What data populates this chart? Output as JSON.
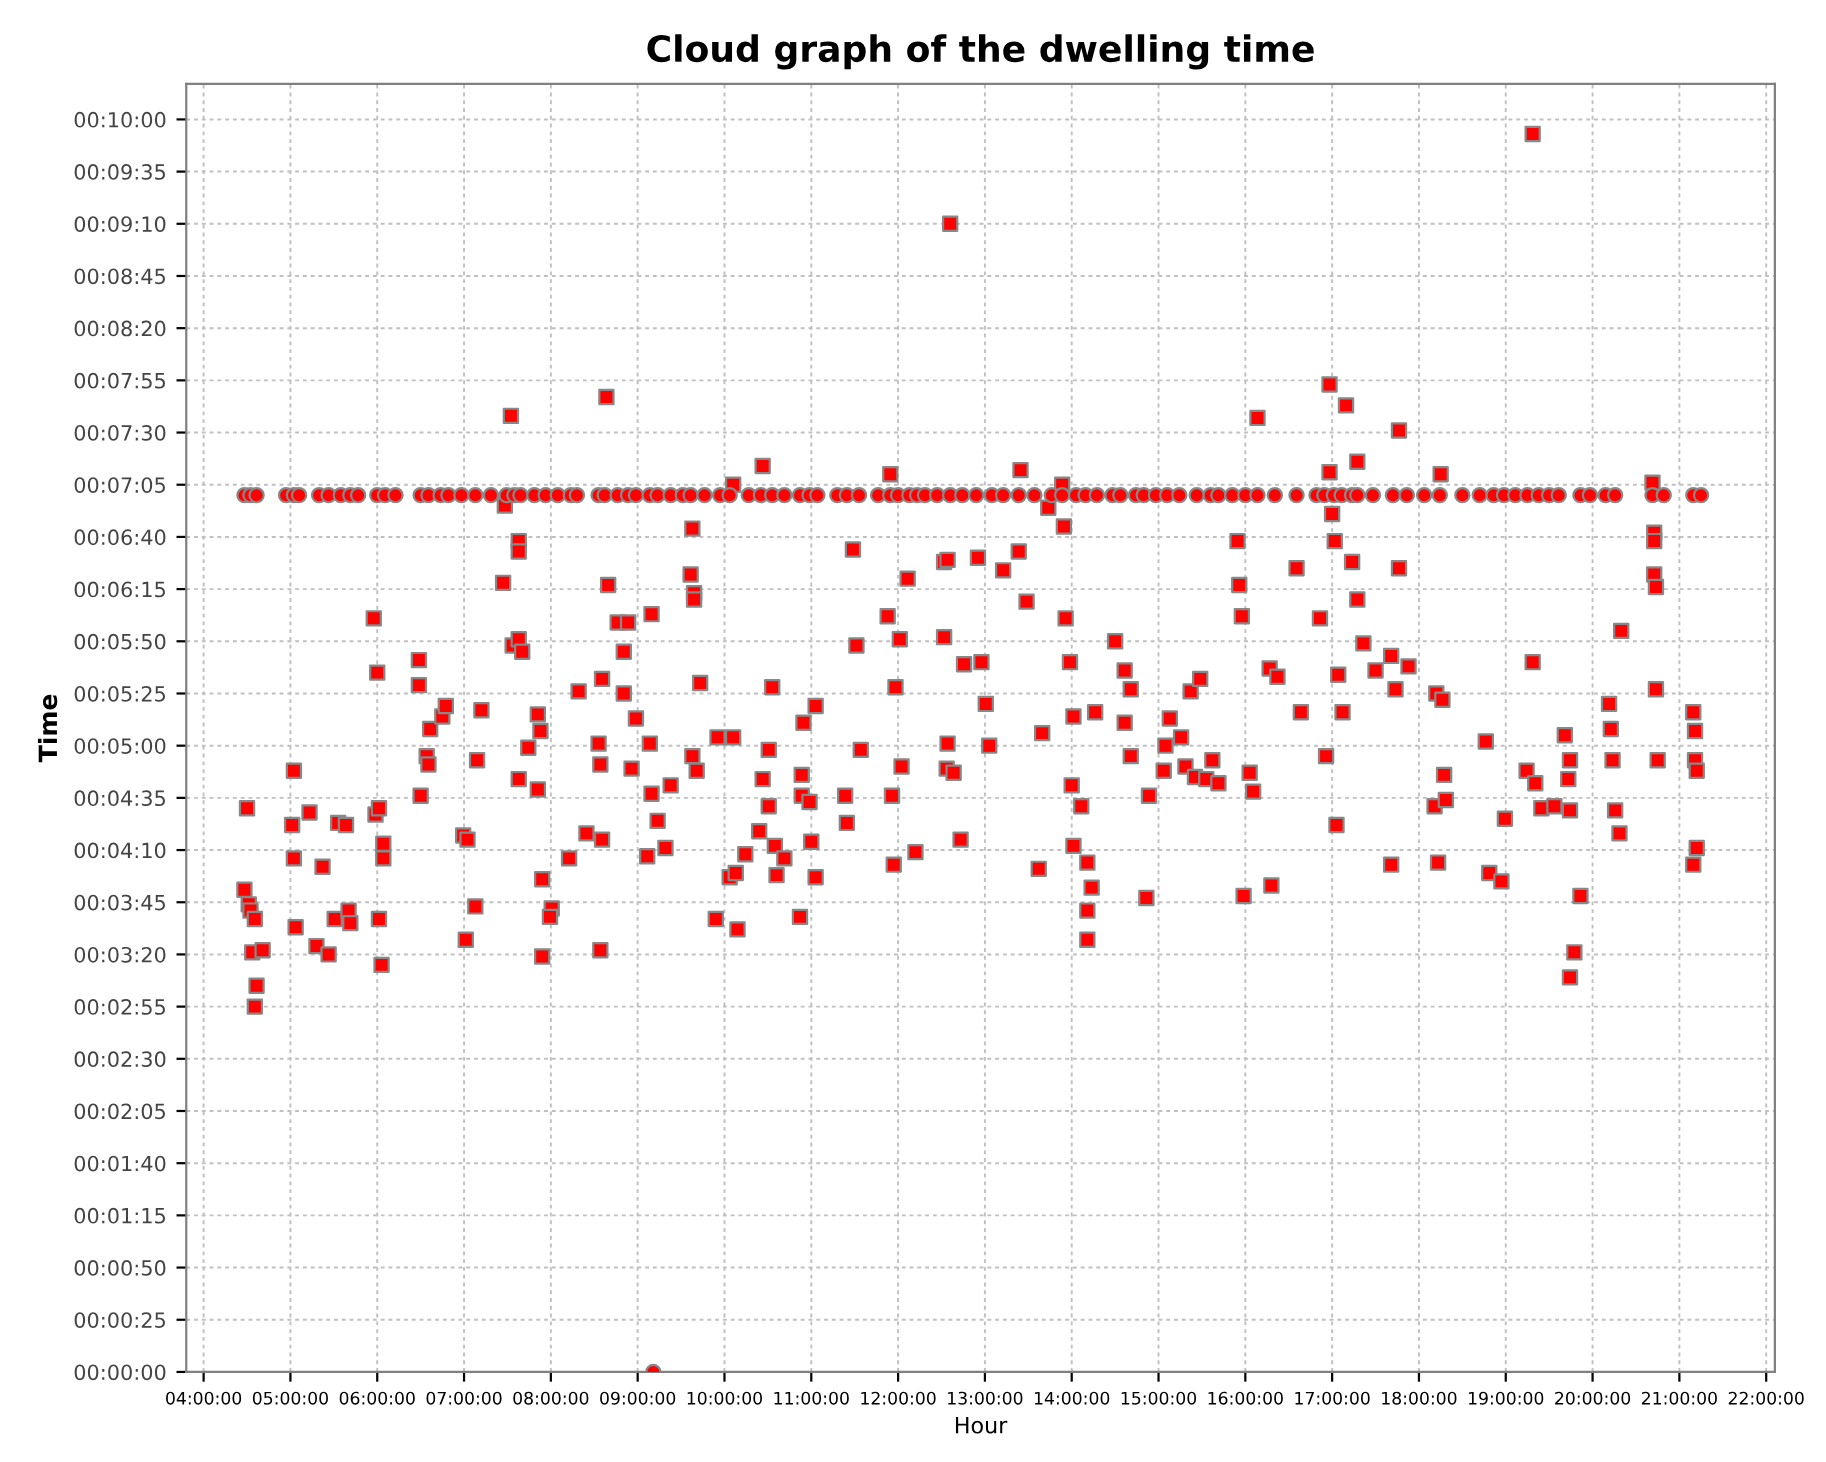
{
  "chart_data": {
    "type": "scatter",
    "title": "Cloud graph of the dwelling time",
    "xlabel": "Hour",
    "ylabel": "Time",
    "xlim": [
      3.8,
      22.1
    ],
    "ylim": [
      0,
      617
    ],
    "xticks": [
      {
        "value": 4,
        "label": "04:00:00"
      },
      {
        "value": 5,
        "label": "05:00:00"
      },
      {
        "value": 6,
        "label": "06:00:00"
      },
      {
        "value": 7,
        "label": "07:00:00"
      },
      {
        "value": 8,
        "label": "08:00:00"
      },
      {
        "value": 9,
        "label": "09:00:00"
      },
      {
        "value": 10,
        "label": "10:00:00"
      },
      {
        "value": 11,
        "label": "11:00:00"
      },
      {
        "value": 12,
        "label": "12:00:00"
      },
      {
        "value": 13,
        "label": "13:00:00"
      },
      {
        "value": 14,
        "label": "14:00:00"
      },
      {
        "value": 15,
        "label": "15:00:00"
      },
      {
        "value": 16,
        "label": "16:00:00"
      },
      {
        "value": 17,
        "label": "17:00:00"
      },
      {
        "value": 18,
        "label": "18:00:00"
      },
      {
        "value": 19,
        "label": "19:00:00"
      },
      {
        "value": 20,
        "label": "20:00:00"
      },
      {
        "value": 21,
        "label": "21:00:00"
      },
      {
        "value": 22,
        "label": "22:00:00"
      }
    ],
    "yticks": [
      {
        "value": 0,
        "label": "00:00:00"
      },
      {
        "value": 25,
        "label": "00:00:25"
      },
      {
        "value": 50,
        "label": "00:00:50"
      },
      {
        "value": 75,
        "label": "00:01:15"
      },
      {
        "value": 100,
        "label": "00:01:40"
      },
      {
        "value": 125,
        "label": "00:02:05"
      },
      {
        "value": 150,
        "label": "00:02:30"
      },
      {
        "value": 175,
        "label": "00:02:55"
      },
      {
        "value": 200,
        "label": "00:03:20"
      },
      {
        "value": 225,
        "label": "00:03:45"
      },
      {
        "value": 250,
        "label": "00:04:10"
      },
      {
        "value": 275,
        "label": "00:04:35"
      },
      {
        "value": 300,
        "label": "00:05:00"
      },
      {
        "value": 325,
        "label": "00:05:25"
      },
      {
        "value": 350,
        "label": "00:05:50"
      },
      {
        "value": 375,
        "label": "00:06:15"
      },
      {
        "value": 400,
        "label": "00:06:40"
      },
      {
        "value": 425,
        "label": "00:07:05"
      },
      {
        "value": 450,
        "label": "00:07:30"
      },
      {
        "value": 475,
        "label": "00:07:55"
      },
      {
        "value": 500,
        "label": "00:08:20"
      },
      {
        "value": 525,
        "label": "00:08:45"
      },
      {
        "value": 550,
        "label": "00:09:10"
      },
      {
        "value": 575,
        "label": "00:09:35"
      },
      {
        "value": 600,
        "label": "00:10:00"
      }
    ],
    "grid": true,
    "series": [
      {
        "color": "#ff0000",
        "marker": "square",
        "x": [
          4.47,
          4.52,
          4.54,
          4.59,
          4.56,
          4.68,
          4.61,
          4.59,
          4.5,
          5.04,
          5.02,
          5.04,
          5.06,
          5.22,
          5.37,
          5.3,
          5.44,
          5.55,
          5.64,
          5.51,
          5.67,
          5.69,
          5.98,
          6.02,
          6.07,
          6.02,
          6.07,
          5.96,
          6.0,
          6.05,
          6.48,
          6.48,
          6.5,
          6.57,
          6.59,
          6.61,
          6.75,
          6.79,
          6.99,
          7.04,
          7.02,
          7.13,
          7.15,
          7.2,
          7.47,
          7.45,
          7.54,
          7.63,
          7.63,
          7.56,
          7.63,
          7.67,
          7.63,
          7.74,
          7.85,
          7.88,
          7.85,
          7.9,
          7.9,
          8.01,
          7.99,
          8.21,
          8.32,
          8.41,
          8.55,
          8.57,
          8.57,
          8.59,
          8.64,
          8.59,
          8.66,
          8.77,
          8.84,
          8.89,
          8.84,
          8.93,
          8.98,
          9.14,
          9.11,
          9.16,
          9.16,
          9.23,
          9.32,
          9.38,
          9.63,
          9.61,
          9.65,
          9.65,
          9.63,
          9.68,
          9.72,
          9.9,
          9.92,
          10.06,
          10.13,
          10.15,
          10.1,
          10.1,
          10.24,
          10.44,
          10.4,
          10.44,
          10.51,
          10.51,
          10.55,
          10.58,
          10.6,
          10.69,
          10.89,
          10.87,
          10.91,
          10.89,
          11.0,
          10.98,
          11.05,
          11.05,
          11.41,
          11.39,
          11.48,
          11.52,
          11.57,
          11.88,
          11.91,
          11.93,
          11.95,
          11.97,
          12.02,
          12.04,
          12.11,
          12.2,
          12.53,
          12.53,
          12.57,
          12.6,
          12.56,
          12.64,
          12.57,
          12.72,
          12.76,
          12.92,
          12.96,
          13.01,
          13.05,
          13.21,
          13.39,
          13.41,
          13.48,
          13.66,
          13.62,
          13.73,
          13.89,
          13.91,
          13.93,
          13.98,
          14.02,
          14.0,
          14.02,
          14.11,
          14.18,
          14.18,
          14.23,
          14.18,
          14.27,
          14.5,
          14.61,
          14.61,
          14.68,
          14.68,
          14.86,
          14.89,
          15.06,
          15.13,
          15.08,
          15.26,
          15.31,
          15.37,
          15.48,
          15.42,
          15.55,
          15.62,
          15.69,
          15.91,
          15.93,
          15.96,
          15.98,
          16.05,
          16.09,
          16.14,
          16.28,
          16.3,
          16.37,
          16.59,
          16.64,
          16.86,
          16.93,
          16.97,
          16.97,
          17.0,
          17.03,
          17.05,
          17.07,
          17.12,
          17.16,
          17.23,
          17.29,
          17.29,
          17.36,
          17.5,
          17.68,
          17.68,
          17.77,
          17.77,
          17.73,
          17.88,
          18.2,
          18.18,
          18.22,
          18.25,
          18.27,
          18.29,
          18.31,
          18.77,
          18.81,
          18.95,
          18.99,
          19.24,
          19.31,
          19.31,
          19.34,
          19.41,
          19.56,
          19.68,
          19.72,
          19.74,
          19.74,
          19.79,
          19.74,
          19.86,
          20.19,
          20.21,
          20.23,
          20.26,
          20.31,
          20.33,
          20.69,
          20.71,
          20.71,
          20.71,
          20.73,
          20.73,
          20.75,
          21.16,
          21.18,
          21.2,
          21.16,
          21.2,
          21.18
        ],
        "values": [
          231,
          224,
          221,
          217,
          201,
          202,
          185,
          175,
          270,
          288,
          262,
          246,
          213,
          268,
          242,
          204,
          200,
          263,
          262,
          217,
          221,
          215,
          267,
          270,
          246,
          217,
          253,
          361,
          335,
          195,
          341,
          329,
          276,
          295,
          291,
          308,
          314,
          319,
          257,
          255,
          207,
          223,
          293,
          317,
          415,
          378,
          458,
          398,
          393,
          348,
          351,
          345,
          284,
          299,
          315,
          307,
          279,
          236,
          199,
          222,
          218,
          246,
          326,
          258,
          301,
          291,
          202,
          255,
          467,
          332,
          377,
          359,
          345,
          359,
          325,
          289,
          313,
          301,
          247,
          363,
          277,
          264,
          251,
          281,
          404,
          382,
          373,
          370,
          295,
          288,
          330,
          217,
          304,
          237,
          239,
          212,
          425,
          304,
          248,
          434,
          259,
          284,
          271,
          298,
          328,
          252,
          238,
          246,
          276,
          218,
          311,
          286,
          254,
          273,
          237,
          319,
          263,
          276,
          394,
          348,
          298,
          362,
          430,
          276,
          243,
          328,
          351,
          290,
          380,
          249,
          352,
          388,
          389,
          550,
          289,
          287,
          301,
          255,
          339,
          390,
          340,
          320,
          300,
          384,
          393,
          432,
          369,
          306,
          241,
          414,
          425,
          405,
          361,
          340,
          314,
          281,
          252,
          271,
          244,
          221,
          232,
          207,
          316,
          350,
          336,
          311,
          327,
          295,
          227,
          276,
          288,
          313,
          300,
          304,
          290,
          326,
          332,
          285,
          284,
          293,
          282,
          398,
          377,
          362,
          228,
          287,
          278,
          457,
          337,
          233,
          333,
          385,
          316,
          361,
          295,
          473,
          431,
          411,
          398,
          262,
          334,
          316,
          463,
          388,
          436,
          370,
          349,
          336,
          343,
          243,
          451,
          385,
          327,
          338,
          325,
          271,
          244,
          430,
          322,
          286,
          274,
          302,
          239,
          235,
          265,
          288,
          593,
          340,
          282,
          270,
          271,
          305,
          284,
          293,
          269,
          201,
          189,
          228,
          320,
          308,
          293,
          269,
          258,
          355,
          426,
          402,
          398,
          382,
          376,
          327,
          293,
          316,
          293,
          288,
          243,
          251,
          307
        ]
      },
      {
        "color": "#ff0000",
        "marker": "circle",
        "x": [
          4.47,
          4.54,
          4.61,
          4.95,
          5.04,
          5.1,
          5.33,
          5.44,
          5.58,
          5.69,
          5.78,
          6.0,
          6.09,
          6.21,
          6.5,
          6.59,
          6.73,
          6.82,
          6.97,
          7.13,
          7.31,
          7.49,
          7.58,
          7.65,
          7.81,
          7.94,
          8.08,
          8.23,
          8.3,
          8.55,
          8.62,
          8.77,
          8.89,
          8.98,
          9.14,
          9.23,
          9.38,
          9.52,
          9.61,
          9.77,
          9.95,
          10.06,
          10.28,
          10.42,
          10.55,
          10.69,
          10.87,
          10.98,
          11.07,
          11.3,
          11.41,
          11.55,
          11.77,
          11.91,
          12.0,
          12.13,
          12.22,
          12.31,
          12.45,
          12.6,
          12.74,
          12.9,
          13.08,
          13.21,
          13.39,
          13.57,
          13.77,
          13.89,
          14.05,
          14.16,
          14.29,
          14.47,
          14.56,
          14.74,
          14.83,
          14.97,
          15.1,
          15.24,
          15.44,
          15.6,
          15.69,
          15.85,
          16.0,
          16.14,
          16.34,
          16.59,
          16.82,
          16.91,
          17.02,
          17.11,
          17.23,
          17.29,
          17.47,
          17.7,
          17.86,
          18.06,
          18.24,
          18.5,
          18.7,
          18.86,
          18.98,
          19.11,
          19.25,
          19.38,
          19.5,
          19.61,
          19.86,
          19.97,
          20.15,
          20.26,
          20.69,
          20.82,
          21.16,
          21.25,
          9.18
        ],
        "values": [
          420,
          420,
          420,
          420,
          420,
          420,
          420,
          420,
          420,
          420,
          420,
          420,
          420,
          420,
          420,
          420,
          420,
          420,
          420,
          420,
          420,
          420,
          420,
          420,
          420,
          420,
          420,
          420,
          420,
          420,
          420,
          420,
          420,
          420,
          420,
          420,
          420,
          420,
          420,
          420,
          420,
          420,
          420,
          420,
          420,
          420,
          420,
          420,
          420,
          420,
          420,
          420,
          420,
          420,
          420,
          420,
          420,
          420,
          420,
          420,
          420,
          420,
          420,
          420,
          420,
          420,
          420,
          420,
          420,
          420,
          420,
          420,
          420,
          420,
          420,
          420,
          420,
          420,
          420,
          420,
          420,
          420,
          420,
          420,
          420,
          420,
          420,
          420,
          420,
          420,
          420,
          420,
          420,
          420,
          420,
          420,
          420,
          420,
          420,
          420,
          420,
          420,
          420,
          420,
          420,
          420,
          420,
          420,
          420,
          420,
          420,
          420,
          420,
          420,
          0
        ]
      }
    ]
  }
}
